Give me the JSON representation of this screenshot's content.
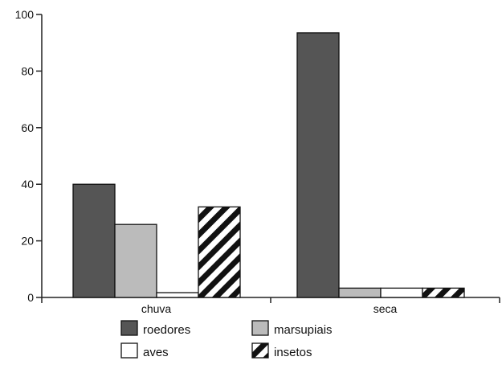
{
  "chart_data": {
    "type": "bar",
    "categories": [
      "chuva",
      "seca"
    ],
    "series": [
      {
        "name": "roedores",
        "values": [
          40,
          93.5
        ],
        "color": "#555555",
        "pattern": "solid"
      },
      {
        "name": "marsupiais",
        "values": [
          25.8,
          3.3
        ],
        "color": "#bbbbbb",
        "pattern": "solid"
      },
      {
        "name": "aves",
        "values": [
          1.7,
          3.3
        ],
        "color": "#ffffff",
        "pattern": "solid"
      },
      {
        "name": "insetos",
        "values": [
          32,
          3.3
        ],
        "color": "#111111",
        "pattern": "diagonal-stripes"
      }
    ],
    "ylim": [
      0,
      100
    ],
    "yticks": [
      0,
      20,
      40,
      60,
      80,
      100
    ],
    "grid": false,
    "legend_position": "bottom"
  }
}
